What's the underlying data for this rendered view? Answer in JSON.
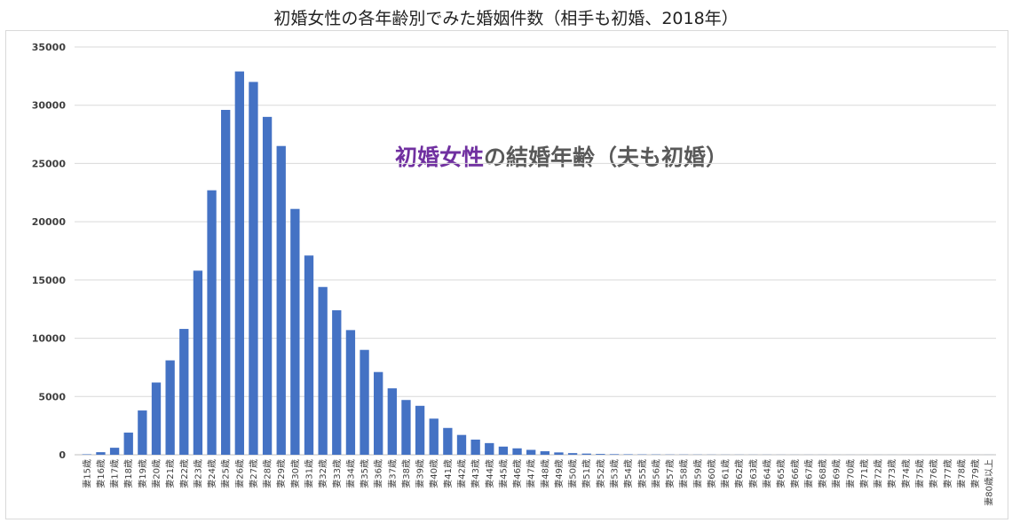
{
  "chart_data": {
    "type": "bar",
    "title": "初婚女性の各年齢別でみた婚姻件数（相手も初婚、2018年）",
    "annotation": {
      "highlight": "初婚女性",
      "rest": "の結婚年齢（夫も初婚）"
    },
    "xlabel": "",
    "ylabel": "",
    "ylim": [
      0,
      35000
    ],
    "yticks": [
      0,
      5000,
      10000,
      15000,
      20000,
      25000,
      30000,
      35000
    ],
    "grid": true,
    "bar_color": "#4472c4",
    "highlight_color": "#7030a0",
    "categories": [
      "妻15歳",
      "妻16歳",
      "妻17歳",
      "妻18歳",
      "妻19歳",
      "妻20歳",
      "妻21歳",
      "妻22歳",
      "妻23歳",
      "妻24歳",
      "妻25歳",
      "妻26歳",
      "妻27歳",
      "妻28歳",
      "妻29歳",
      "妻30歳",
      "妻31歳",
      "妻32歳",
      "妻33歳",
      "妻34歳",
      "妻35歳",
      "妻36歳",
      "妻37歳",
      "妻38歳",
      "妻39歳",
      "妻40歳",
      "妻41歳",
      "妻42歳",
      "妻43歳",
      "妻44歳",
      "妻45歳",
      "妻46歳",
      "妻47歳",
      "妻48歳",
      "妻49歳",
      "妻50歳",
      "妻51歳",
      "妻52歳",
      "妻53歳",
      "妻54歳",
      "妻55歳",
      "妻56歳",
      "妻57歳",
      "妻58歳",
      "妻59歳",
      "妻60歳",
      "妻61歳",
      "妻62歳",
      "妻63歳",
      "妻64歳",
      "妻65歳",
      "妻66歳",
      "妻67歳",
      "妻68歳",
      "妻69歳",
      "妻70歳",
      "妻71歳",
      "妻72歳",
      "妻73歳",
      "妻74歳",
      "妻75歳",
      "妻76歳",
      "妻77歳",
      "妻78歳",
      "妻79歳",
      "妻80歳以上"
    ],
    "values": [
      40,
      220,
      600,
      1900,
      3800,
      6200,
      8100,
      10800,
      15800,
      22700,
      29600,
      32900,
      32000,
      29000,
      26500,
      21100,
      17100,
      14400,
      12400,
      10700,
      9000,
      7100,
      5700,
      4700,
      4200,
      3100,
      2300,
      1700,
      1300,
      1000,
      700,
      550,
      420,
      300,
      200,
      140,
      100,
      70,
      50,
      40,
      30,
      25,
      20,
      18,
      15,
      12,
      10,
      10,
      8,
      8,
      7,
      6,
      5,
      5,
      4,
      4,
      3,
      3,
      3,
      2,
      2,
      2,
      0,
      0,
      2,
      3
    ]
  }
}
